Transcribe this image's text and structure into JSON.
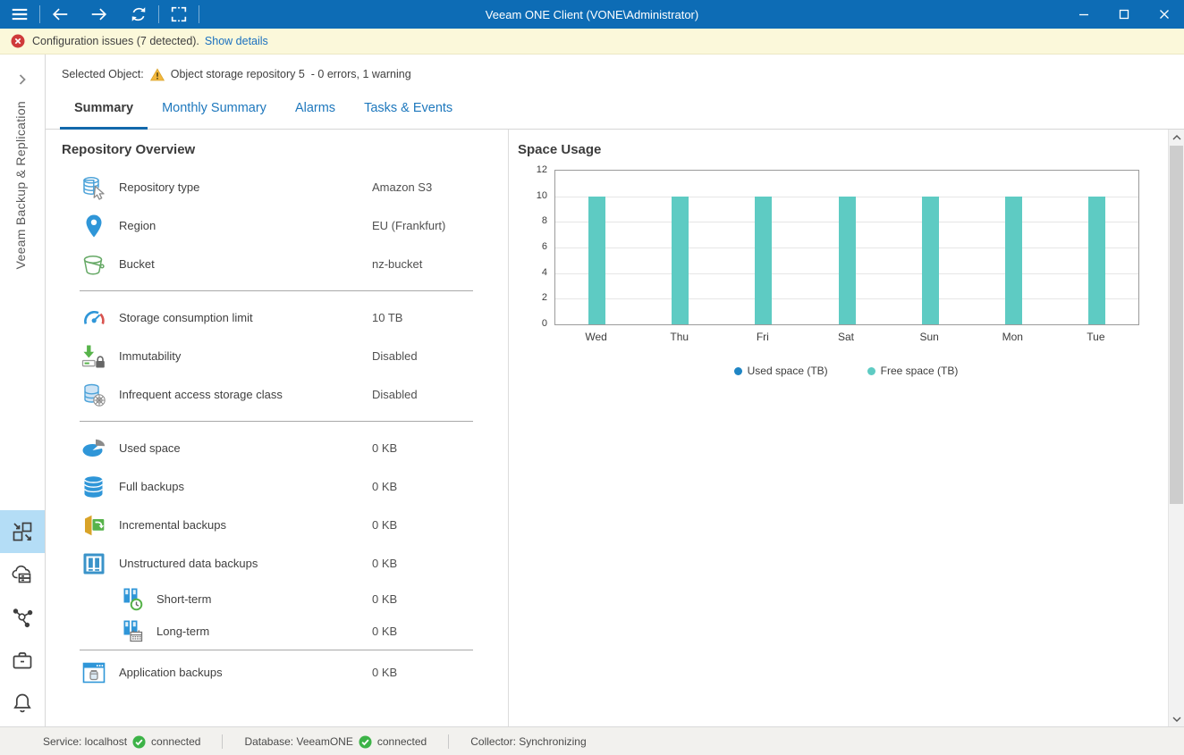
{
  "window": {
    "title": "Veeam ONE Client (VONE\\Administrator)"
  },
  "colors": {
    "titlebar": "#0d6cb5",
    "notification_bg": "#fbf8da",
    "selected_rail_icon_bg": "#b4ddf6",
    "tab_link": "#1e78bd",
    "error_red": "#cf3a3a",
    "warning_amber": "#f3b73c",
    "ok_green": "#3cb347"
  },
  "notification": {
    "message": "Configuration issues (7 detected).",
    "link": "Show details"
  },
  "selected_object": {
    "label": "Selected Object:",
    "name": "Object storage repository 5",
    "suffix": "- 0 errors, 1 warning"
  },
  "sidebar": {
    "title": "Veeam Backup & Replication"
  },
  "tabs": [
    {
      "label": "Summary"
    },
    {
      "label": "Monthly Summary"
    },
    {
      "label": "Alarms"
    },
    {
      "label": "Tasks & Events"
    }
  ],
  "overview": {
    "title": "Repository Overview",
    "rows": [
      {
        "label": "Repository type",
        "value": "Amazon S3"
      },
      {
        "label": "Region",
        "value": "EU (Frankfurt)"
      },
      {
        "label": "Bucket",
        "value": "nz-bucket"
      },
      {
        "label": "Storage consumption limit",
        "value": "10 TB"
      },
      {
        "label": "Immutability",
        "value": "Disabled"
      },
      {
        "label": "Infrequent access storage class",
        "value": "Disabled"
      },
      {
        "label": "Used space",
        "value": "0 KB"
      },
      {
        "label": "Full backups",
        "value": "0 KB"
      },
      {
        "label": "Incremental backups",
        "value": "0 KB"
      },
      {
        "label": "Unstructured data backups",
        "value": "0 KB"
      },
      {
        "label": "Short-term",
        "value": "0 KB"
      },
      {
        "label": "Long-term",
        "value": "0 KB"
      },
      {
        "label": "Application backups",
        "value": "0 KB"
      }
    ]
  },
  "chart_data": {
    "type": "bar",
    "title": "Space Usage",
    "categories": [
      "Wed",
      "Thu",
      "Fri",
      "Sat",
      "Sun",
      "Mon",
      "Tue"
    ],
    "series": [
      {
        "name": "Used space (TB)",
        "color": "#1f85c4",
        "values": [
          0,
          0,
          0,
          0,
          0,
          0,
          0
        ]
      },
      {
        "name": "Free space (TB)",
        "color": "#5ecbc3",
        "values": [
          10,
          10,
          10,
          10,
          10,
          10,
          10
        ]
      }
    ],
    "ylim": [
      0,
      12
    ],
    "ytick_step": 2,
    "grid": true,
    "legend_position": "bottom",
    "stacked": true
  },
  "status_bar": {
    "service": "Service: localhost",
    "service_status": "connected",
    "database": "Database: VeeamONE",
    "database_status": "connected",
    "collector": "Collector: Synchronizing"
  }
}
